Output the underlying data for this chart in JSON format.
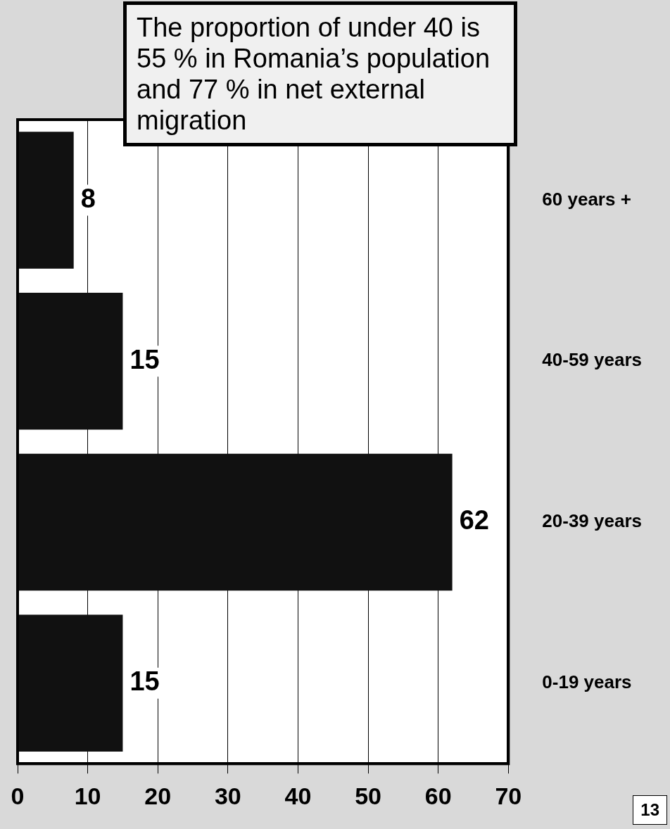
{
  "chart_data": {
    "type": "bar",
    "orientation": "horizontal",
    "categories": [
      "60 years +",
      "40-59 years",
      "20-39 years",
      "0-19 years"
    ],
    "values": [
      8,
      15,
      62,
      15
    ],
    "color": "#111111",
    "xlim": [
      0,
      70
    ],
    "xticks": [
      0,
      10,
      20,
      30,
      40,
      50,
      60,
      70
    ],
    "grid": "x",
    "data_labels": true,
    "annotations": [
      "The proportion of under 40 is 55 % in Romania’s population and 77 % in net external migration",
      "13"
    ]
  }
}
